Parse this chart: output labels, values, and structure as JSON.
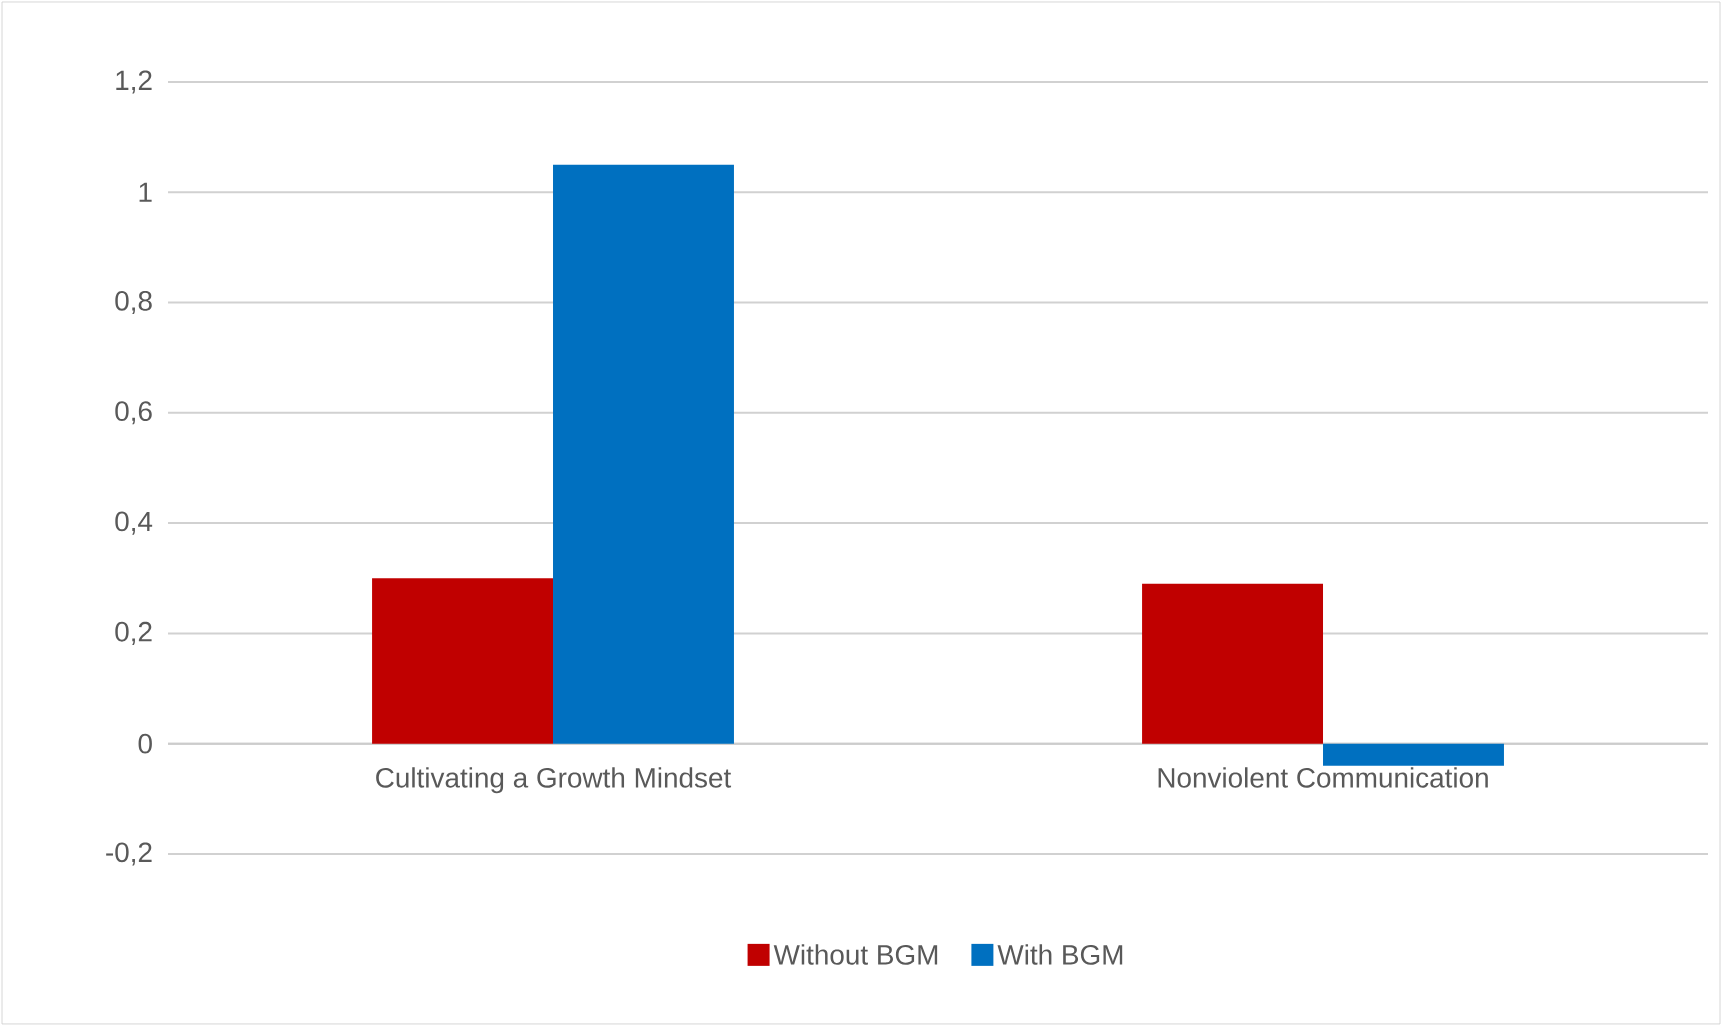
{
  "chart_data": {
    "type": "bar",
    "categories": [
      "Cultivating a Growth Mindset",
      "Nonviolent Communication"
    ],
    "series": [
      {
        "name": "Without BGM",
        "color": "#c00000",
        "values": [
          0.3,
          0.29
        ]
      },
      {
        "name": "With BGM",
        "color": "#0070c0",
        "values": [
          1.05,
          -0.04
        ]
      }
    ],
    "ylim": [
      -0.2,
      1.2
    ],
    "yticks": [
      {
        "value": -0.2,
        "label": "-0,2"
      },
      0,
      {
        "value": 0.2,
        "label": "0,2"
      },
      {
        "value": 0.4,
        "label": "0,4"
      },
      {
        "value": 0.6,
        "label": "0,6"
      },
      {
        "value": 0.8,
        "label": "0,8"
      },
      1,
      {
        "value": 1.2,
        "label": "1,2"
      }
    ],
    "grid": "y",
    "legend": "bottom"
  }
}
